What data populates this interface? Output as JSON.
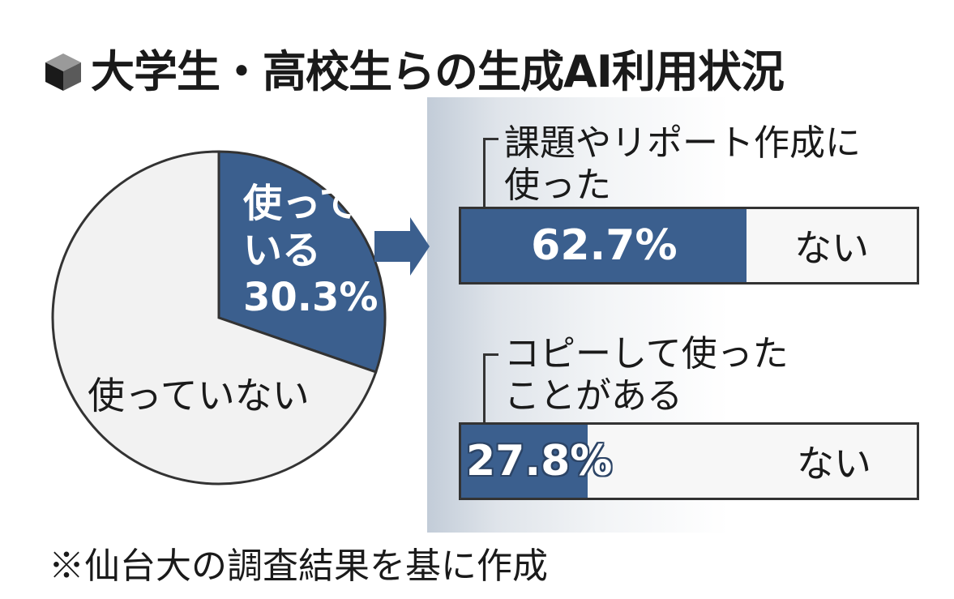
{
  "title": "大学生・高校生らの生成AI利用状況",
  "note": "※仙台大の調査結果を基に作成",
  "colors": {
    "accent": "#3b5f8e",
    "pie_rest": "#f2f2f2",
    "bar_rest": "#f7f7f7"
  },
  "chart_data": [
    {
      "type": "pie",
      "slices": [
        {
          "label_lines": [
            "使って",
            "いる"
          ],
          "value_text": "30.3%",
          "value": 30.3
        },
        {
          "label": "使っていない",
          "value": 69.7
        }
      ]
    },
    {
      "type": "bar",
      "question_lines": [
        "課題やリポート作成に",
        "使った"
      ],
      "value_text": "62.7%",
      "value": 62.7,
      "rest_label": "ない"
    },
    {
      "type": "bar",
      "question_lines": [
        "コピーして使った",
        "ことがある"
      ],
      "value_text": "27.8%",
      "value": 27.8,
      "rest_label": "ない"
    }
  ]
}
